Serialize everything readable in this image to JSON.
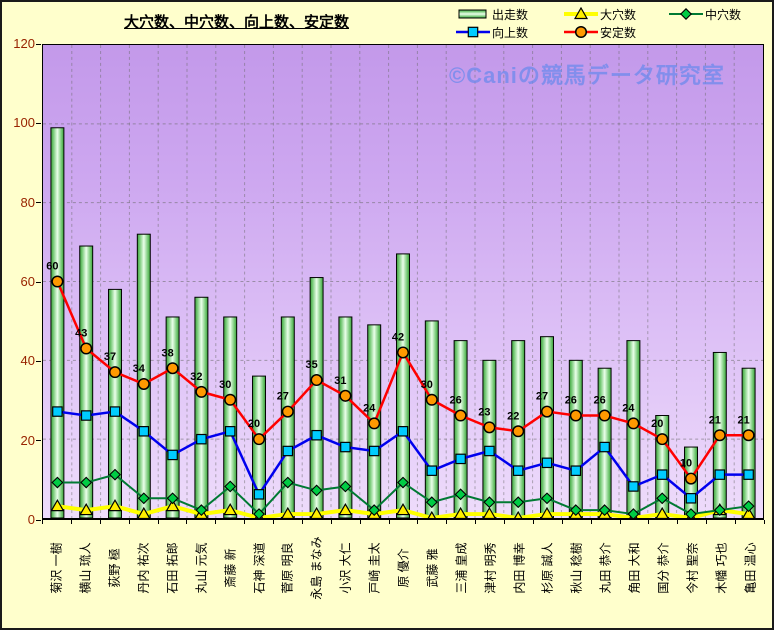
{
  "watermark": {
    "text": "©Caniの競馬データ研究室",
    "color": "rgba(112,138,236,0.78)"
  },
  "axis": {
    "tick_label_color": "#992400"
  },
  "chart_data": {
    "type": "bar",
    "title": "大穴数、中穴数、向上数、安定数",
    "xlabel": "",
    "ylabel": "",
    "ylim": [
      0,
      120
    ],
    "yticks": [
      0,
      20,
      40,
      60,
      80,
      100,
      120
    ],
    "grid": "dashed",
    "legend_position": "top-right",
    "categories": [
      "菊沢 一樹",
      "横山 琉人",
      "荻野 極",
      "丹内 祐次",
      "石田 拓郎",
      "丸山 元気",
      "斎藤 新",
      "石神 深道",
      "菅原 明良",
      "永島 まなみ",
      "小沢 大仁",
      "戸崎 圭太",
      "原 優介",
      "武藤 雅",
      "三浦 皇成",
      "津村 明秀",
      "内田 博幸",
      "杉原 誠人",
      "秋山 稔樹",
      "丸田 恭介",
      "角田 大和",
      "国分 恭介",
      "今村 聖奈",
      "木幡 巧也",
      "亀田 温心"
    ],
    "series": [
      {
        "name": "出走数",
        "type": "bar",
        "marker": "bar",
        "color_edge": "#3da23d",
        "color_center": "#eaffea",
        "values": [
          99,
          69,
          58,
          72,
          51,
          56,
          51,
          36,
          51,
          61,
          51,
          49,
          67,
          50,
          45,
          40,
          45,
          46,
          40,
          38,
          45,
          26,
          18,
          42,
          38
        ]
      },
      {
        "name": "大穴数",
        "type": "line",
        "marker": "triangle",
        "line_color": "#ffff00",
        "marker_color": "#ffee00",
        "line_width": 4,
        "values": [
          3,
          2,
          3,
          1,
          3,
          1,
          2,
          0,
          1,
          1,
          2,
          1,
          2,
          0,
          1,
          1,
          0,
          1,
          1,
          1,
          0,
          1,
          0,
          2,
          1
        ]
      },
      {
        "name": "中穴数",
        "type": "line",
        "marker": "diamond",
        "line_color": "#007a33",
        "marker_color": "#00cc44",
        "line_width": 2,
        "values": [
          9,
          9,
          11,
          5,
          5,
          2,
          8,
          1,
          9,
          7,
          8,
          2,
          9,
          4,
          6,
          4,
          4,
          5,
          2,
          2,
          1,
          5,
          1,
          2,
          3
        ]
      },
      {
        "name": "向上数",
        "type": "line",
        "marker": "square",
        "line_color": "#0000ee",
        "marker_color": "#00ccff",
        "line_width": 2.5,
        "values": [
          27,
          26,
          27,
          22,
          16,
          20,
          22,
          6,
          17,
          21,
          18,
          17,
          22,
          12,
          15,
          17,
          12,
          14,
          12,
          18,
          8,
          11,
          5,
          11,
          11
        ]
      },
      {
        "name": "安定数",
        "type": "line",
        "marker": "circle",
        "line_color": "#ff0000",
        "marker_color": "#ff9900",
        "line_width": 2.5,
        "data_labels": true,
        "data_label_color": "#000000",
        "values": [
          60,
          43,
          37,
          34,
          38,
          32,
          30,
          20,
          27,
          35,
          31,
          24,
          42,
          30,
          26,
          23,
          22,
          27,
          26,
          26,
          24,
          20,
          10,
          21,
          21
        ]
      }
    ]
  }
}
